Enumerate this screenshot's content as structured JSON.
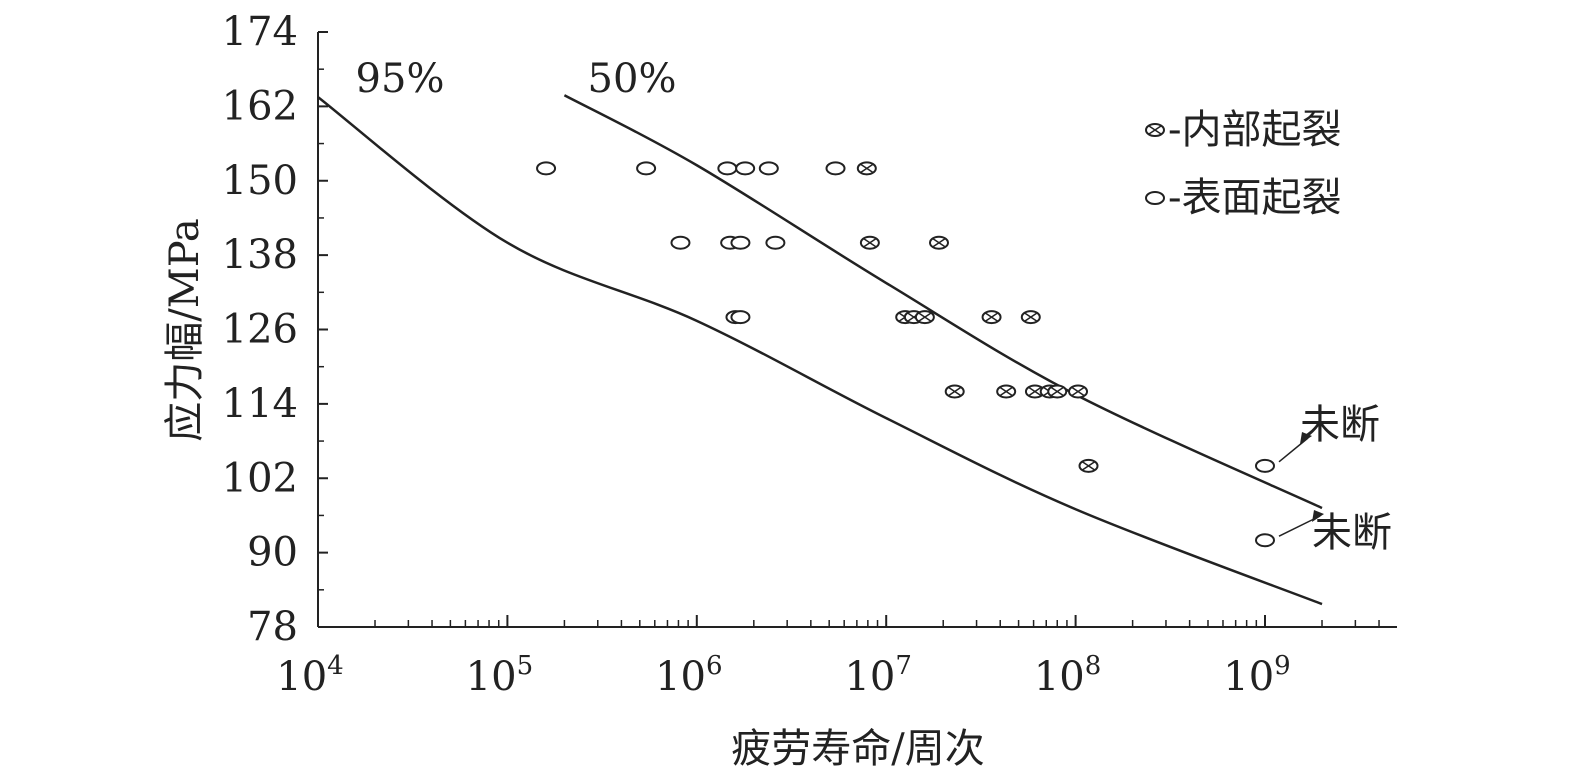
{
  "chart_data": {
    "type": "scatter",
    "xlabel": "疲劳寿命/周次",
    "ylabel": "应力幅/MPa",
    "xscale": "log",
    "xlim": [
      10000,
      5000000000
    ],
    "ylim": [
      78,
      174
    ],
    "yticks": [
      78,
      90,
      102,
      114,
      126,
      138,
      150,
      162,
      174
    ],
    "xticks": [
      {
        "base": "10",
        "exp": "4",
        "value": 10000
      },
      {
        "base": "10",
        "exp": "5",
        "value": 100000
      },
      {
        "base": "10",
        "exp": "6",
        "value": 1000000
      },
      {
        "base": "10",
        "exp": "7",
        "value": 10000000
      },
      {
        "base": "10",
        "exp": "8",
        "value": 100000000
      },
      {
        "base": "10",
        "exp": "9",
        "value": 1000000000
      }
    ],
    "legend": {
      "position": "top-right",
      "entries": [
        {
          "marker": "crossed-circle",
          "label": "-内部起裂"
        },
        {
          "marker": "circle",
          "label": "-表面起裂"
        }
      ]
    },
    "curves": [
      {
        "name": "95%",
        "label": "95%",
        "points": [
          [
            10000,
            163.5
          ],
          [
            100000,
            140
          ],
          [
            1000000,
            127.4
          ],
          [
            10000000,
            111.7
          ],
          [
            100000000,
            97
          ],
          [
            2000000000,
            81.7
          ]
        ]
      },
      {
        "name": "50%",
        "label": "50%",
        "points": [
          [
            200000,
            163.8
          ],
          [
            1000000,
            152.5
          ],
          [
            10000000,
            133.5
          ],
          [
            100000000,
            115.5
          ],
          [
            2000000000,
            97.2
          ]
        ]
      }
    ],
    "series": [
      {
        "name": "表面起裂",
        "marker": "circle",
        "points": [
          [
            160000,
            152
          ],
          [
            540000,
            152
          ],
          [
            1450000,
            152
          ],
          [
            1800000,
            152
          ],
          [
            2400000,
            152
          ],
          [
            5400000,
            152
          ],
          [
            820000,
            140
          ],
          [
            1500000,
            140
          ],
          [
            1700000,
            140
          ],
          [
            2600000,
            140
          ],
          [
            1600000,
            128
          ],
          [
            1700000,
            128
          ],
          [
            1000000000,
            104
          ],
          [
            1000000000,
            92
          ]
        ]
      },
      {
        "name": "内部起裂",
        "marker": "crossed-circle",
        "points": [
          [
            7900000,
            152
          ],
          [
            8200000,
            140
          ],
          [
            19000000,
            140
          ],
          [
            12600000,
            128
          ],
          [
            14000000,
            128
          ],
          [
            16000000,
            128
          ],
          [
            36000000,
            128
          ],
          [
            58000000,
            128
          ],
          [
            23000000,
            116
          ],
          [
            43000000,
            116
          ],
          [
            61000000,
            116
          ],
          [
            73000000,
            116
          ],
          [
            80000000,
            116
          ],
          [
            103000000,
            116
          ],
          [
            117000000,
            104
          ]
        ]
      }
    ],
    "annotations": [
      {
        "text": "未断",
        "target": [
          1000000000,
          104
        ]
      },
      {
        "text": "未断",
        "target": [
          1000000000,
          92
        ]
      }
    ]
  }
}
